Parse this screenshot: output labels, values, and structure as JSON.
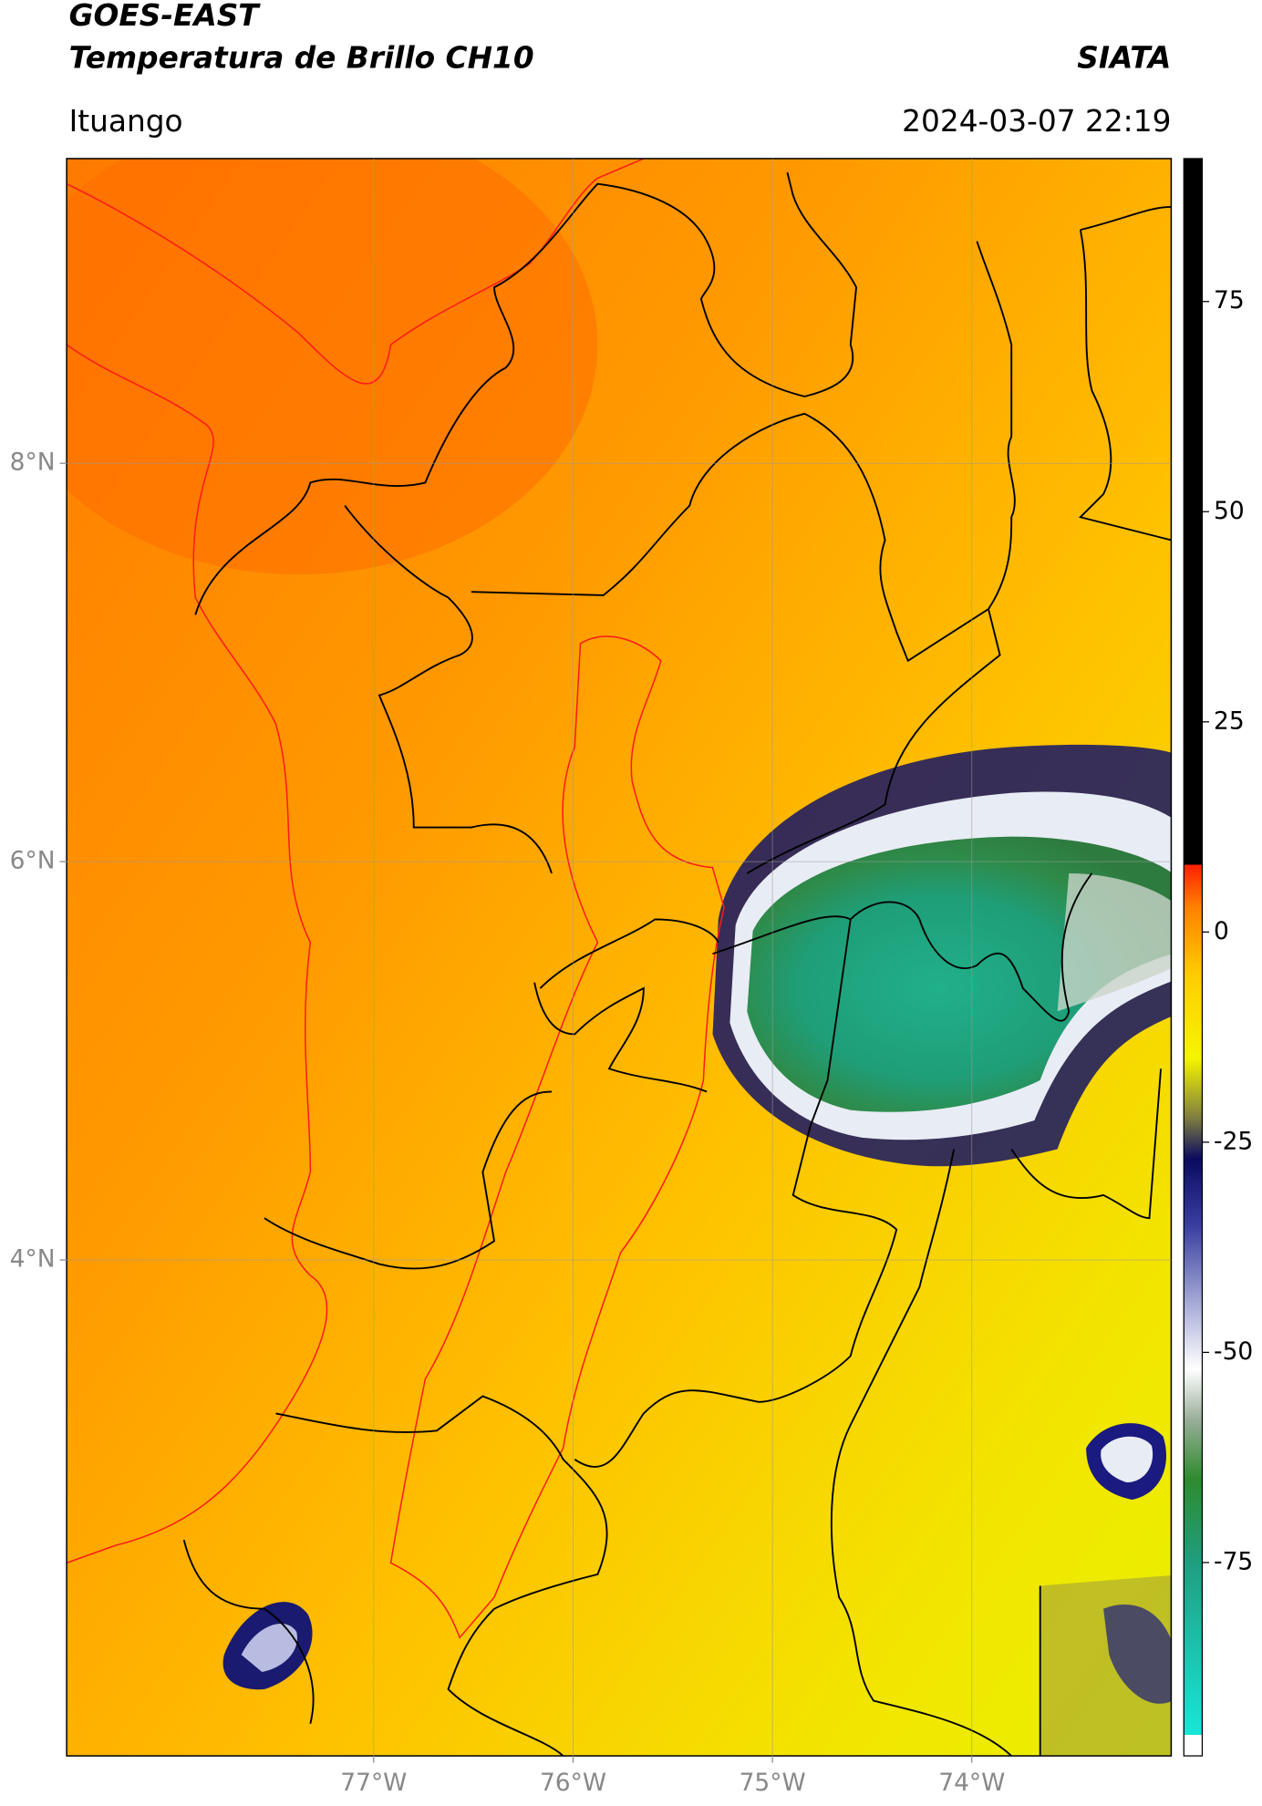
{
  "header": {
    "title": "GOES-EAST",
    "subtitle": "Temperatura de Brillo CH10",
    "source": "SIATA",
    "place": "Ituango",
    "datetime": "2024-03-07 22:19"
  },
  "map": {
    "xlim": [
      -78.54,
      -73.0
    ],
    "ylim": [
      1.51,
      9.53
    ],
    "xticks": [
      {
        "value": -77,
        "label": "77°W"
      },
      {
        "value": -76,
        "label": "76°W"
      },
      {
        "value": -75,
        "label": "75°W"
      },
      {
        "value": -74,
        "label": "74°W"
      }
    ],
    "yticks": [
      {
        "value": 8,
        "label": "8°N"
      },
      {
        "value": 6,
        "label": "6°N"
      },
      {
        "value": 4,
        "label": "4°N"
      }
    ],
    "grid": true
  },
  "colorbar": {
    "lim": [
      -98,
      92
    ],
    "ticks": [
      -75,
      -50,
      -25,
      0,
      25,
      50,
      75
    ],
    "stops": [
      {
        "value": -98,
        "color": "#ffffff"
      },
      {
        "value": -95.5,
        "color": "#ffffff"
      },
      {
        "value": -95.5,
        "color": "#19e6d8"
      },
      {
        "value": -75,
        "color": "#1f9e80"
      },
      {
        "value": -65,
        "color": "#2e8b2e"
      },
      {
        "value": -58,
        "color": "#9aae9a"
      },
      {
        "value": -52,
        "color": "#ffffff"
      },
      {
        "value": -45,
        "color": "#b0b4dc"
      },
      {
        "value": -35,
        "color": "#3a3fa0"
      },
      {
        "value": -27,
        "color": "#0a0a60"
      },
      {
        "value": -22,
        "color": "#808040"
      },
      {
        "value": -15,
        "color": "#f5f500"
      },
      {
        "value": -5,
        "color": "#ffcc00"
      },
      {
        "value": 3,
        "color": "#ff8000"
      },
      {
        "value": 8,
        "color": "#ff2000"
      },
      {
        "value": 8,
        "color": "#000000"
      },
      {
        "value": 92,
        "color": "#000000"
      }
    ]
  }
}
